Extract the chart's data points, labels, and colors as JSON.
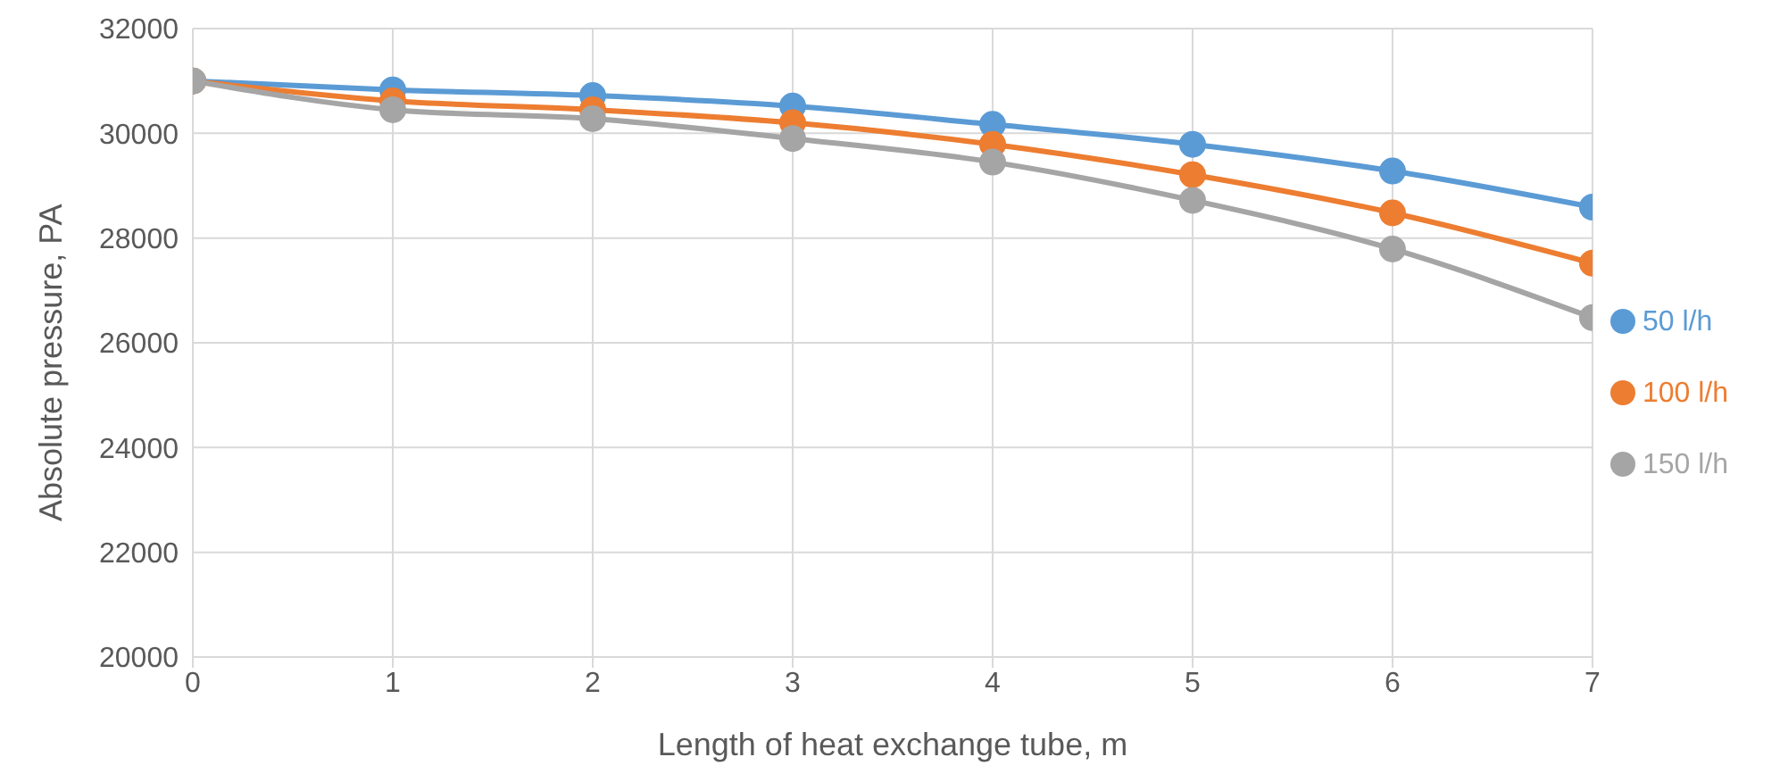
{
  "chart_data": {
    "type": "line",
    "xlabel": "Length of heat exchange tube, m",
    "ylabel": "Absolute pressure, PA",
    "x": [
      0,
      1,
      2,
      3,
      4,
      5,
      6,
      7
    ],
    "series": [
      {
        "name": "50 l/h",
        "color": "#5b9bd5",
        "values": [
          31000,
          30830,
          30720,
          30520,
          30170,
          29790,
          29280,
          28590
        ]
      },
      {
        "name": "100 l/h",
        "color": "#ed7d31",
        "values": [
          31000,
          30620,
          30450,
          30200,
          29790,
          29210,
          28480,
          27520
        ]
      },
      {
        "name": "150 l/h",
        "color": "#a5a5a5",
        "values": [
          31000,
          30450,
          30280,
          29900,
          29450,
          28720,
          27790,
          26480
        ]
      }
    ],
    "xlim": [
      0,
      7
    ],
    "xticks": [
      0,
      1,
      2,
      3,
      4,
      5,
      6,
      7
    ],
    "ylim": [
      20000,
      32000
    ],
    "yticks": [
      20000,
      22000,
      24000,
      26000,
      28000,
      30000,
      32000
    ],
    "grid": true,
    "legend": "right",
    "marker": "circle",
    "line_style": "solid"
  }
}
